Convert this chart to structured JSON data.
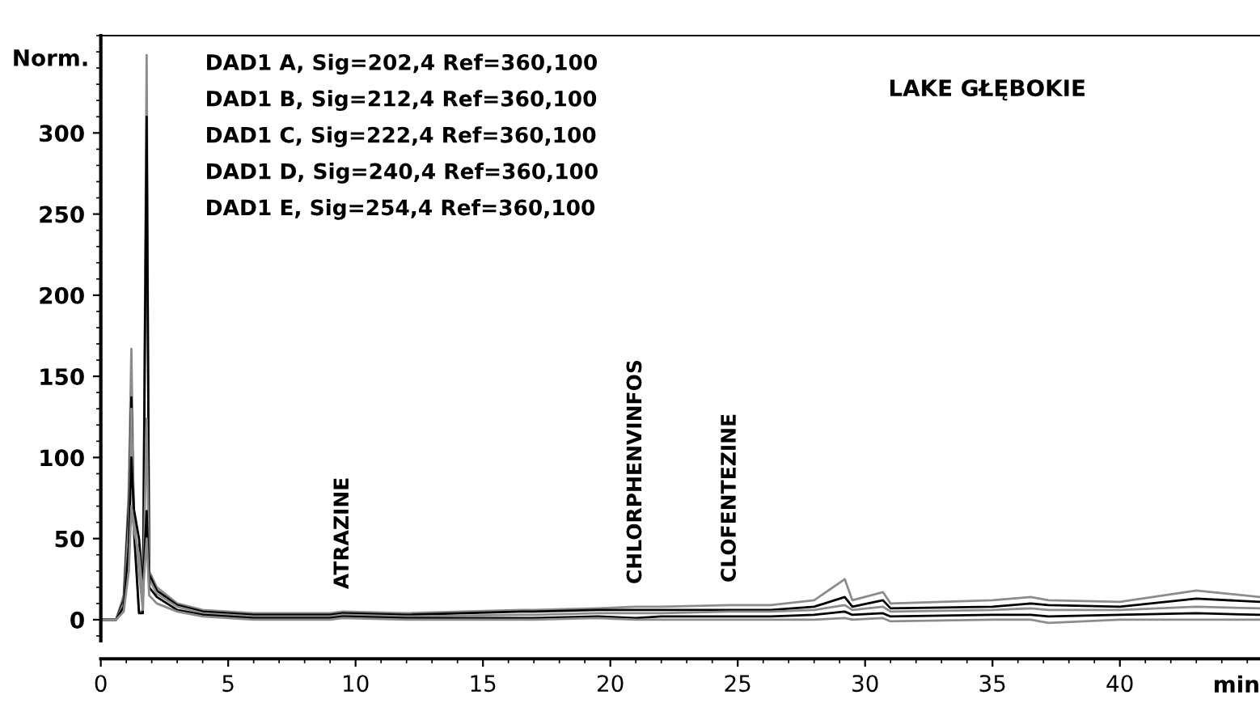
{
  "chart_data": {
    "type": "line",
    "title": "LAKE GŁĘBOKIE",
    "xlabel": "min",
    "ylabel": "Norm.",
    "x": [
      0,
      0.6,
      0.9,
      1.1,
      1.2,
      1.3,
      1.5,
      1.65,
      1.8,
      1.9,
      2.2,
      3,
      4,
      6,
      9,
      9.5,
      12,
      16.5,
      17,
      19.5,
      21,
      22,
      24.7,
      26.3,
      28,
      29.2,
      29.5,
      30.7,
      31,
      35,
      36.5,
      37.2,
      40,
      43,
      45.5
    ],
    "series": [
      {
        "color": "#8c8c8c",
        "values": [
          0,
          0,
          15,
          80,
          167,
          60,
          5,
          5,
          348,
          30,
          20,
          10,
          6,
          4,
          4,
          5,
          4,
          6,
          6,
          7,
          8,
          8,
          9,
          9,
          12,
          25,
          12,
          17,
          10,
          12,
          14,
          12,
          11,
          18,
          14
        ]
      },
      {
        "color": "#000000",
        "values": [
          0,
          0,
          12,
          70,
          137,
          55,
          4,
          4,
          310,
          28,
          18,
          9,
          5,
          3,
          3,
          4,
          3,
          5,
          5,
          6,
          6,
          6,
          6,
          6,
          8,
          14,
          8,
          12,
          7,
          8,
          10,
          9,
          8,
          13,
          11
        ]
      },
      {
        "color": "#8c8c8c",
        "values": [
          0,
          0,
          10,
          60,
          130,
          65,
          30,
          6,
          124,
          25,
          16,
          8,
          4,
          2,
          2,
          3,
          2,
          3,
          3,
          4,
          4,
          4,
          5,
          5,
          6,
          9,
          6,
          8,
          5,
          6,
          7,
          6,
          6,
          8,
          7
        ]
      },
      {
        "color": "#000000",
        "values": [
          0,
          0,
          8,
          45,
          100,
          68,
          50,
          20,
          67,
          20,
          14,
          6,
          3,
          1,
          1,
          2,
          1,
          1,
          1,
          2,
          1,
          2,
          2,
          2,
          3,
          5,
          3,
          4,
          2,
          3,
          3,
          2,
          3,
          4,
          3
        ]
      },
      {
        "color": "#8c8c8c",
        "values": [
          0,
          0,
          5,
          30,
          70,
          55,
          40,
          15,
          50,
          15,
          10,
          5,
          2,
          0,
          0,
          1,
          0,
          0,
          0,
          1,
          0,
          0,
          0,
          0,
          0,
          1,
          0,
          1,
          -1,
          0,
          0,
          -2,
          0,
          0,
          0
        ]
      }
    ],
    "annotations": [
      "DAD1 A, Sig=202,4 Ref=360,100",
      "DAD1 B, Sig=212,4 Ref=360,100",
      "DAD1 C, Sig=222,4 Ref=360,100",
      "DAD1 D, Sig=240,4 Ref=360,100",
      "DAD1 E, Sig=254,4 Ref=360,100",
      {
        "text": "ATRAZINE",
        "x": 9.5,
        "y": 5
      },
      {
        "text": "CHLORPHENVINFOS",
        "x": 21,
        "y": 8
      },
      {
        "text": "CLOFENTEZINE",
        "x": 24.7,
        "y": 9
      }
    ],
    "xlim": [
      0,
      45.5
    ],
    "ylim": [
      -13,
      360
    ],
    "xticks": [
      0,
      5,
      10,
      15,
      20,
      25,
      30,
      35,
      40
    ],
    "yticks": [
      0,
      50,
      100,
      150,
      200,
      250,
      300
    ],
    "grid": false,
    "legend": false,
    "marker": "none",
    "line_style": "solid"
  }
}
